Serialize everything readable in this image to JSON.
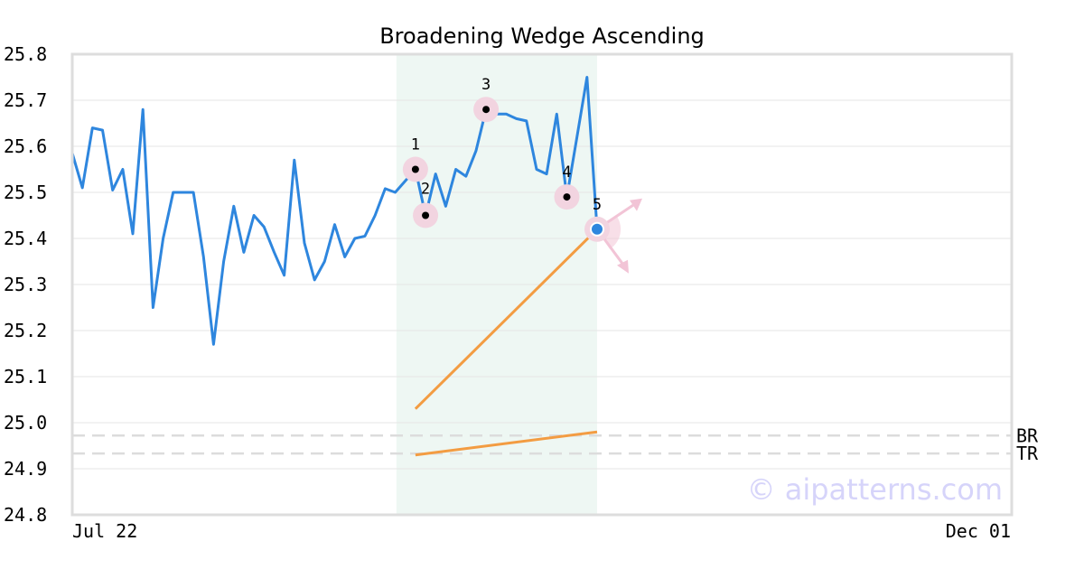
{
  "chart_data": {
    "type": "line",
    "title": "Broadening Wedge Ascending",
    "watermark": "© aipatterns.com",
    "x_labels": [
      "Jul 22",
      "Dec 01"
    ],
    "ylim": [
      24.8,
      25.8
    ],
    "y_ticks": [
      24.8,
      24.9,
      25.0,
      25.1,
      25.2,
      25.3,
      25.4,
      25.5,
      25.6,
      25.7,
      25.8
    ],
    "y_tick_labels": [
      "24.8",
      "24.9",
      "25.0",
      "25.1",
      "25.2",
      "25.3",
      "25.4",
      "25.5",
      "25.6",
      "25.7",
      "25.8"
    ],
    "grid": true,
    "colors": {
      "price": "#2e86de",
      "trendline": "#f39c42",
      "highlight": "#eef7f3",
      "marker_halo": "#f2d4e0",
      "grid": "#e6e6e6",
      "reference": "#dcdcdc",
      "frame": "#dddddd",
      "arrow": "#f2c4d6"
    },
    "series": [
      {
        "values": [
          25.585,
          25.51,
          25.64,
          25.635,
          25.505,
          25.55,
          25.41,
          25.68,
          25.25,
          25.4,
          25.5,
          25.5,
          25.5,
          25.36,
          25.17,
          25.35,
          25.47,
          25.37,
          25.45,
          25.425,
          25.37,
          25.32,
          25.57,
          25.39,
          25.31,
          25.35,
          25.43,
          25.36,
          25.4,
          25.405,
          25.45,
          25.508,
          25.5,
          25.525,
          25.55,
          25.45,
          25.54,
          25.47,
          25.55,
          25.535,
          25.59,
          25.68,
          25.67,
          25.67,
          25.66,
          25.655,
          25.55,
          25.54,
          25.67,
          25.49,
          25.62,
          25.75,
          25.42
        ]
      }
    ],
    "highlight_range": [
      34,
      52
    ],
    "pivots": [
      {
        "label": "1",
        "index": 34,
        "value": 25.55
      },
      {
        "label": "2",
        "index": 35,
        "value": 25.45
      },
      {
        "label": "3",
        "index": 41,
        "value": 25.68
      },
      {
        "label": "4",
        "index": 49,
        "value": 25.49
      },
      {
        "label": "5",
        "index": 52,
        "value": 25.42
      }
    ],
    "trendlines": [
      {
        "from": {
          "index": 34,
          "value": 25.03
        },
        "to": {
          "index": 52,
          "value": 25.42
        }
      },
      {
        "from": {
          "index": 34,
          "value": 24.93
        },
        "to": {
          "index": 52,
          "value": 24.98
        }
      }
    ],
    "reference_lines": [
      {
        "label": "BR",
        "value": 24.972
      },
      {
        "label": "TR",
        "value": 24.933
      }
    ]
  }
}
